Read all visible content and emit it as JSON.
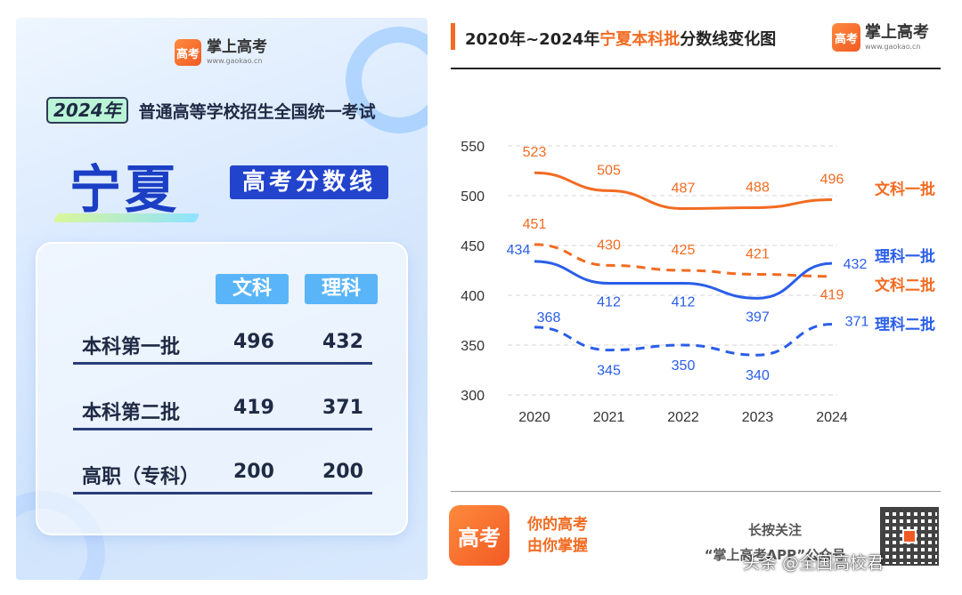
{
  "poster": {
    "brand_icon": "高考",
    "brand_name": "掌上高考",
    "brand_url": "www.gaokao.cn",
    "year": "2024年",
    "exam": "普通高等学校招生全国统一考试",
    "province": "宁夏",
    "badge": "高考分数线",
    "columns": [
      "文科",
      "理科"
    ],
    "rows": [
      {
        "label": "本科第一批",
        "wen": "496",
        "li": "432"
      },
      {
        "label": "本科第二批",
        "wen": "419",
        "li": "371"
      },
      {
        "label": "高职（专科）",
        "wen": "200",
        "li": "200"
      }
    ]
  },
  "chart_panel": {
    "title_prefix": "2020年~2024年",
    "title_highlight": "宁夏本科批",
    "title_suffix": "分数线变化图",
    "brand_name": "掌上高考",
    "brand_url": "www.gaokao.cn",
    "brand_icon": "高考"
  },
  "chart_data": {
    "type": "line",
    "x": [
      "2020",
      "2021",
      "2022",
      "2023",
      "2024"
    ],
    "ylim": [
      300,
      550
    ],
    "yticks": [
      300,
      350,
      400,
      450,
      500,
      550
    ],
    "grid": true,
    "series": [
      {
        "name": "文科一批",
        "values": [
          523,
          505,
          487,
          488,
          496
        ],
        "color": "#f26b21",
        "dashed": false
      },
      {
        "name": "文科二批",
        "values": [
          451,
          430,
          425,
          421,
          419
        ],
        "color": "#f26b21",
        "dashed": true
      },
      {
        "name": "理科一批",
        "values": [
          434,
          412,
          412,
          397,
          432
        ],
        "color": "#2a5ee8",
        "dashed": false
      },
      {
        "name": "理科二批",
        "values": [
          368,
          345,
          350,
          340,
          371
        ],
        "color": "#2a5ee8",
        "dashed": true
      }
    ]
  },
  "footer": {
    "icon": "高考",
    "slogan_line1": "你的高考",
    "slogan_line2": "由你掌握",
    "follow_line1": "长按关注",
    "follow_line2": "“掌上高考APP”公众号",
    "watermark": "头条 @全国高校君"
  }
}
